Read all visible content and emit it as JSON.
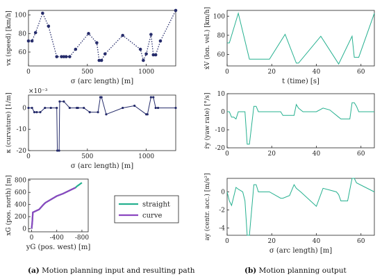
{
  "colors": {
    "left": "#262c6b",
    "right": "#25b08f",
    "curve": "#8b46c0",
    "axis": "#222222"
  },
  "captions": {
    "a_tag": "(a)",
    "a_text": "Motion planning input and resulting path",
    "b_tag": "(b)",
    "b_text": "Motion planning output"
  },
  "chart_data": [
    {
      "id": "speed",
      "type": "line",
      "style": "dotted-with-markers",
      "xlabel": "σ (arc length) [m]",
      "ylabel": "vx (speed) [km/h]",
      "xlim": [
        0,
        1250
      ],
      "ylim": [
        45,
        105
      ],
      "xticks": [
        0,
        500,
        1000
      ],
      "yticks": [
        60,
        80,
        100
      ],
      "x": [
        0,
        30,
        60,
        120,
        170,
        240,
        280,
        300,
        320,
        350,
        400,
        510,
        580,
        600,
        620,
        650,
        800,
        950,
        975,
        1000,
        1040,
        1060,
        1080,
        1120,
        1250
      ],
      "y": [
        72,
        72,
        81,
        102,
        88,
        55,
        55,
        55,
        55,
        55,
        63,
        80,
        70,
        51,
        51,
        58,
        78,
        63,
        51,
        58,
        79,
        57,
        57,
        72,
        105
      ]
    },
    {
      "id": "curvature",
      "type": "line",
      "style": "solid-with-markers",
      "xlabel": "σ (arc length) [m]",
      "ylabel": "κ (curvature) [1/m]",
      "multiplier": "×10⁻³",
      "xlim": [
        0,
        1250
      ],
      "ylim": [
        -20,
        6
      ],
      "xticks": [
        0,
        500,
        1000
      ],
      "yticks": [
        -20,
        -10,
        0
      ],
      "x": [
        0,
        30,
        50,
        70,
        100,
        140,
        190,
        240,
        245,
        260,
        265,
        300,
        350,
        410,
        420,
        470,
        520,
        590,
        610,
        620,
        660,
        800,
        900,
        1000,
        1010,
        1040,
        1060,
        1080,
        1100,
        1250
      ],
      "y": [
        0,
        0,
        -2,
        -2,
        -2,
        0,
        0,
        0,
        -20,
        -20,
        3,
        3,
        0,
        0,
        0,
        0,
        -2,
        -2,
        5,
        5,
        -3,
        0,
        1,
        -3,
        -3,
        5,
        5,
        0,
        0,
        0
      ]
    },
    {
      "id": "path",
      "type": "line",
      "xlabel": "yG (pos. west) [m]",
      "ylabel": "xG (pos. north) [m]",
      "xlim": [
        50,
        -900
      ],
      "ylim": [
        -50,
        820
      ],
      "xticks": [
        0,
        -400,
        -800
      ],
      "xtick_labels": [
        "0",
        "-400",
        "-800"
      ],
      "yticks": [
        0,
        200,
        400,
        600,
        800
      ],
      "legend_location": "right",
      "series": [
        {
          "name": "straight",
          "color": "#25b08f",
          "x": [
            0,
            -10,
            -20,
            -120,
            -190,
            -220,
            -400,
            -500,
            -600,
            -700,
            -720,
            -800
          ],
          "y": [
            0,
            100,
            270,
            320,
            400,
            430,
            540,
            580,
            630,
            680,
            700,
            760
          ]
        },
        {
          "name": "curve",
          "color": "#8b46c0",
          "x": [
            0,
            -10,
            -20,
            -120,
            -190,
            -220,
            -400,
            -500,
            -600,
            -700
          ],
          "y": [
            0,
            100,
            270,
            320,
            400,
            430,
            540,
            580,
            630,
            680
          ]
        }
      ]
    },
    {
      "id": "lonvel",
      "type": "line",
      "xlabel": "t (time) [s]",
      "ylabel": "ẋV (lon. vel.) [km/h]",
      "xlim": [
        0,
        66
      ],
      "ylim": [
        48,
        106
      ],
      "xticks": [
        0,
        20,
        40,
        60
      ],
      "yticks": [
        60,
        80,
        100
      ],
      "x": [
        0,
        1,
        5,
        10,
        19,
        26,
        31,
        32,
        42,
        50,
        56,
        57,
        59,
        66
      ],
      "y": [
        72,
        72,
        103,
        55,
        55,
        81,
        51,
        51,
        79,
        50,
        79,
        57,
        57,
        103
      ]
    },
    {
      "id": "yawrate",
      "type": "line",
      "xlabel": "",
      "ylabel": "ṙy (yaw rate) [°/s]",
      "xlim": [
        0,
        66
      ],
      "ylim": [
        -20,
        10
      ],
      "xticks": [
        0,
        20,
        40,
        60
      ],
      "yticks": [
        -20,
        -10,
        0,
        10
      ],
      "x": [
        0,
        1,
        2,
        3,
        4,
        5,
        8,
        9,
        10,
        12,
        13,
        14,
        15,
        19,
        24,
        25,
        30,
        31,
        32,
        34,
        35,
        40,
        43,
        46,
        50,
        51,
        52,
        55,
        56,
        57,
        58,
        59,
        60,
        66
      ],
      "y": [
        0,
        0,
        -3,
        -3,
        -4,
        0,
        0,
        -18,
        -18,
        3,
        3,
        0,
        0,
        0,
        0,
        -2,
        -2,
        4,
        2,
        0,
        0,
        0,
        2,
        1,
        -3,
        -4,
        -4,
        -4,
        5,
        5,
        3,
        0,
        0,
        0
      ]
    },
    {
      "id": "centracc",
      "type": "line",
      "xlabel": "σ (arc length) [m]",
      "ylabel": "ay (centr. acc.) [m/s²]",
      "xlim": [
        0,
        66
      ],
      "ylim": [
        -4.8,
        1.5
      ],
      "xticks": [
        0,
        20,
        40,
        60
      ],
      "yticks": [
        -4,
        -2,
        0
      ],
      "x": [
        0,
        1,
        2,
        4,
        5,
        7,
        8,
        9,
        10,
        12,
        13,
        14,
        19,
        24,
        25,
        28,
        30,
        31,
        33,
        40,
        43,
        46,
        49,
        50,
        51,
        54,
        56,
        57,
        58,
        66
      ],
      "y": [
        0,
        -1,
        -1.5,
        0.5,
        0.3,
        0,
        -1,
        -4.8,
        -4.8,
        0.8,
        0.8,
        0,
        0,
        -0.7,
        -0.7,
        -0.4,
        0.8,
        0.4,
        0,
        -1.6,
        0.4,
        0.2,
        0,
        -0.3,
        -1,
        -1,
        1.5,
        1.5,
        1,
        0
      ]
    }
  ]
}
